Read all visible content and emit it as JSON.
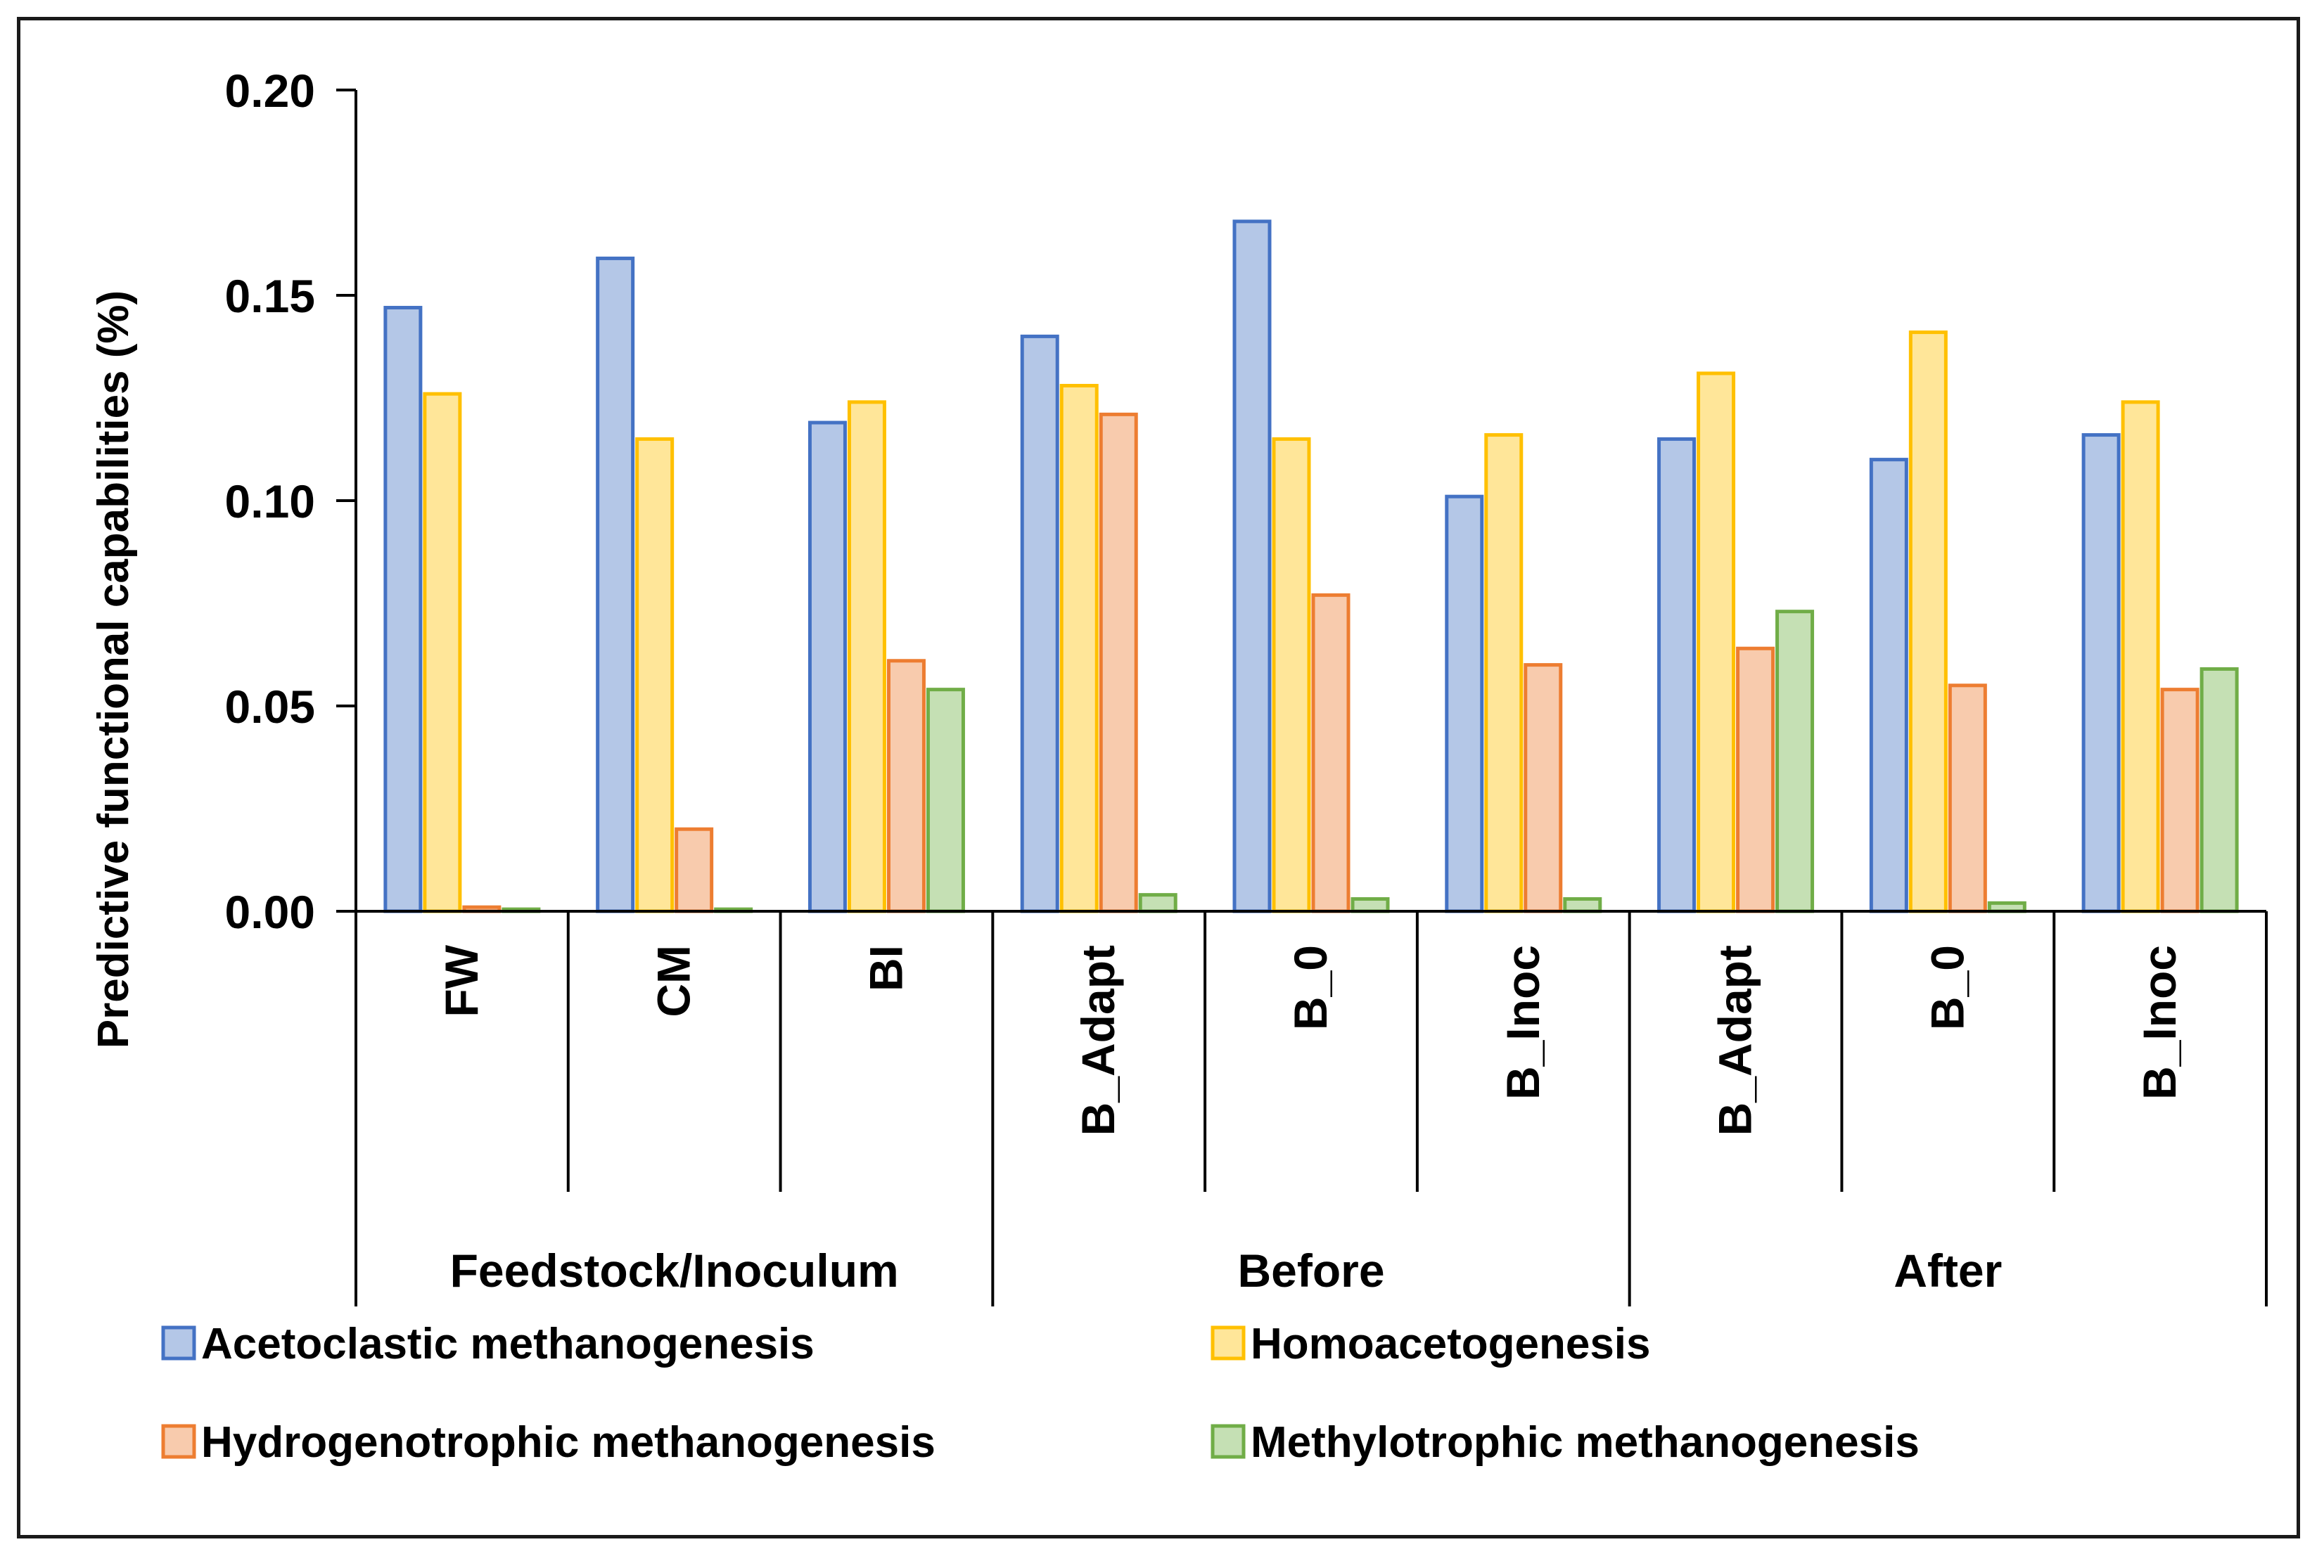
{
  "chart_data": {
    "type": "bar",
    "title": "",
    "xlabel": "",
    "ylabel": "Predictive functional capabilities (%)",
    "ylim": [
      0,
      0.2
    ],
    "yticks": [
      "0.00",
      "0.05",
      "0.10",
      "0.15",
      "0.20"
    ],
    "ytick_values": [
      0,
      0.05,
      0.1,
      0.15,
      0.2
    ],
    "categories": [
      "FW",
      "CM",
      "BI",
      "B_Adapt",
      "B_0",
      "B_Inoc",
      "B_Adapt",
      "B_0",
      "B_Inoc"
    ],
    "groups": [
      {
        "label": "Feedstock/Inoculum",
        "start": 0,
        "count": 3
      },
      {
        "label": "Before",
        "start": 3,
        "count": 3
      },
      {
        "label": "After",
        "start": 6,
        "count": 3
      }
    ],
    "series": [
      {
        "name": "Acetoclastic methanogenesis",
        "fill": "#b4c7e7",
        "stroke": "#4472c4",
        "values": [
          0.147,
          0.159,
          0.119,
          0.14,
          0.168,
          0.101,
          0.115,
          0.11,
          0.116
        ]
      },
      {
        "name": "Homoacetogenesis",
        "fill": "#ffe699",
        "stroke": "#ffc000",
        "values": [
          0.126,
          0.115,
          0.124,
          0.128,
          0.115,
          0.116,
          0.131,
          0.141,
          0.124
        ]
      },
      {
        "name": "Hydrogenotrophic methanogenesis",
        "fill": "#f8cbad",
        "stroke": "#ed7d31",
        "values": [
          0.001,
          0.02,
          0.061,
          0.121,
          0.077,
          0.06,
          0.064,
          0.055,
          0.054
        ]
      },
      {
        "name": "Methylotrophic methanogenesis",
        "fill": "#c5e0b4",
        "stroke": "#70ad47",
        "values": [
          0.0005,
          0.0005,
          0.054,
          0.004,
          0.003,
          0.003,
          0.073,
          0.002,
          0.059
        ]
      }
    ],
    "legend": "bottom",
    "grid": false
  }
}
